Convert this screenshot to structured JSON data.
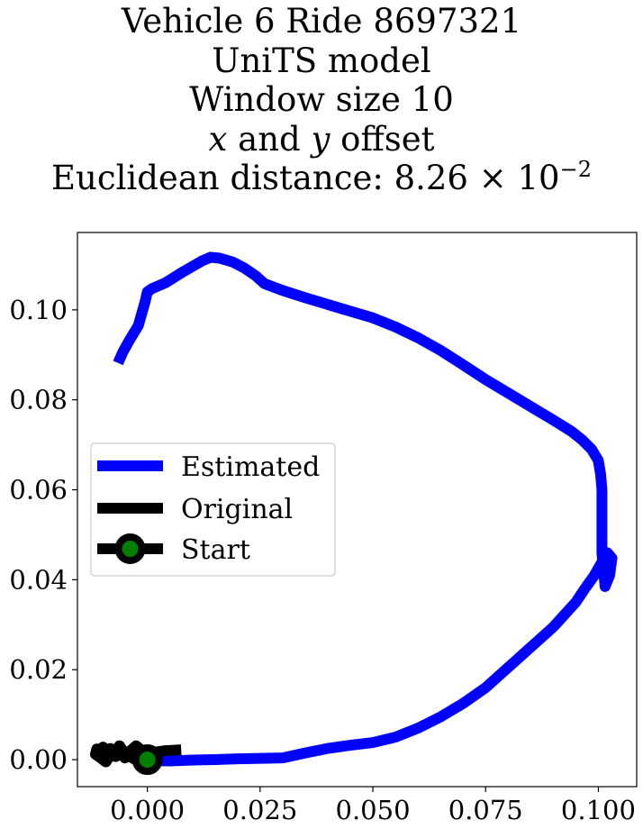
{
  "title": {
    "line1": "Vehicle 6 Ride 8697321",
    "line2": "UniTS model",
    "line3": "Window size 10",
    "line4_x": "x",
    "line4_and": " and ",
    "line4_y": "y",
    "line4_rest": " offset",
    "line5_prefix": "Euclidean distance: 8.26 × 10",
    "line5_exp": "−2"
  },
  "chart_data": {
    "type": "line",
    "xlim": [
      -0.0155,
      0.1085
    ],
    "ylim": [
      -0.006,
      0.1172
    ],
    "xticks": [
      0.0,
      0.025,
      0.05,
      0.075,
      0.1
    ],
    "xtick_labels": [
      "0.000",
      "0.025",
      "0.050",
      "0.075",
      "0.100"
    ],
    "yticks": [
      0.0,
      0.02,
      0.04,
      0.06,
      0.08,
      0.1
    ],
    "ytick_labels": [
      "0.00",
      "0.02",
      "0.04",
      "0.06",
      "0.08",
      "0.10"
    ],
    "grid": false,
    "legend_position": "center-left",
    "series": [
      {
        "name": "Estimated",
        "color": "#0000ff",
        "x": [
          0.0,
          0.005,
          0.01,
          0.015,
          0.02,
          0.025,
          0.03,
          0.035,
          0.04,
          0.045,
          0.05,
          0.055,
          0.06,
          0.065,
          0.07,
          0.075,
          0.08,
          0.085,
          0.09,
          0.095,
          0.097,
          0.099,
          0.1005,
          0.102,
          0.103,
          0.1025,
          0.1015,
          0.1008,
          0.1008,
          0.1005,
          0.1,
          0.0985,
          0.0965,
          0.094,
          0.09,
          0.085,
          0.08,
          0.075,
          0.07,
          0.065,
          0.06,
          0.055,
          0.05,
          0.045,
          0.04,
          0.035,
          0.03,
          0.026,
          0.024,
          0.0215,
          0.019,
          0.016,
          0.014,
          0.012,
          0.008,
          0.004,
          0.001,
          0.0,
          -0.0005,
          -0.002,
          -0.004,
          -0.0055,
          -0.0065
        ],
        "y": [
          -0.0002,
          -0.0003,
          -0.0001,
          0.0,
          0.0002,
          0.0003,
          0.0004,
          0.0015,
          0.0025,
          0.0032,
          0.0038,
          0.005,
          0.007,
          0.0095,
          0.0125,
          0.016,
          0.0205,
          0.025,
          0.0295,
          0.035,
          0.038,
          0.0408,
          0.0434,
          0.046,
          0.0448,
          0.041,
          0.0385,
          0.046,
          0.06,
          0.0635,
          0.0665,
          0.069,
          0.071,
          0.073,
          0.0755,
          0.0785,
          0.0815,
          0.0845,
          0.0878,
          0.091,
          0.0938,
          0.0962,
          0.0982,
          0.0997,
          0.1012,
          0.1027,
          0.1043,
          0.1058,
          0.1076,
          0.1093,
          0.1106,
          0.1115,
          0.1117,
          0.1108,
          0.1085,
          0.106,
          0.1047,
          0.104,
          0.1018,
          0.0965,
          0.0932,
          0.0905,
          0.0882
        ]
      },
      {
        "name": "Original",
        "color": "#000000",
        "x": [
          0.0075,
          0.004,
          0.0012,
          -0.0005,
          -0.0018,
          -0.0025,
          -0.0035,
          -0.0045,
          -0.0055,
          -0.0062,
          -0.007,
          -0.0082,
          -0.0092,
          -0.0098,
          -0.0105,
          -0.0112,
          -0.0115,
          -0.0105,
          -0.0092,
          -0.0085,
          -0.0078,
          -0.007,
          -0.006,
          -0.005,
          -0.004,
          -0.003,
          -0.0022,
          -0.0012,
          -0.0005
        ],
        "y": [
          0.0022,
          0.002,
          0.0016,
          0.0018,
          0.0025,
          0.0031,
          0.0022,
          0.0014,
          0.0021,
          0.0031,
          0.0018,
          0.0025,
          0.0015,
          0.0028,
          0.0022,
          0.0024,
          0.0012,
          0.0005,
          -0.0005,
          0.0006,
          0.0021,
          0.0007,
          0.0015,
          0.0004,
          0.0008,
          0.0002,
          0.0006,
          0.0001,
          0.0
        ]
      },
      {
        "name": "Start",
        "color": "#000000",
        "marker_face": "#008000",
        "x": [
          0.0
        ],
        "y": [
          0.0
        ]
      }
    ]
  }
}
